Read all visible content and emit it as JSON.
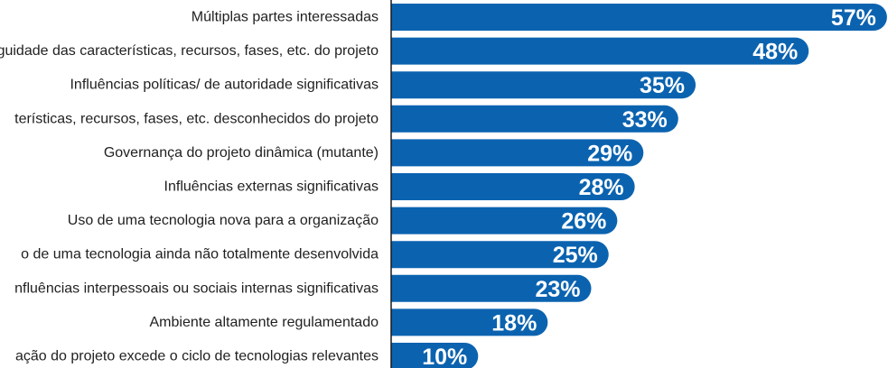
{
  "chart_data": {
    "type": "bar",
    "orientation": "horizontal",
    "categories": [
      "Múltiplas partes interessadas",
      "biguidade das características, recursos, fases, etc. do projeto",
      "Influências políticas/ de autoridade significativas",
      "terísticas, recursos, fases, etc. desconhecidos do projeto",
      "Governança do projeto dinâmica (mutante)",
      "Influências externas significativas",
      "Uso de uma tecnologia nova para a organização",
      "o de uma tecnologia ainda não totalmente desenvolvida",
      "nfluências interpessoais ou sociais internas significativas",
      "Ambiente altamente regulamentado",
      "ação do projeto excede o ciclo de tecnologias relevantes"
    ],
    "values": [
      57,
      48,
      35,
      33,
      29,
      28,
      26,
      25,
      23,
      18,
      10
    ],
    "value_labels": [
      "57%",
      "48%",
      "35%",
      "33%",
      "29%",
      "28%",
      "26%",
      "25%",
      "23%",
      "18%",
      "10%"
    ],
    "unit": "%",
    "bar_color": "#0b63b0",
    "divider_color": "#1a1a1a",
    "grid": false
  }
}
